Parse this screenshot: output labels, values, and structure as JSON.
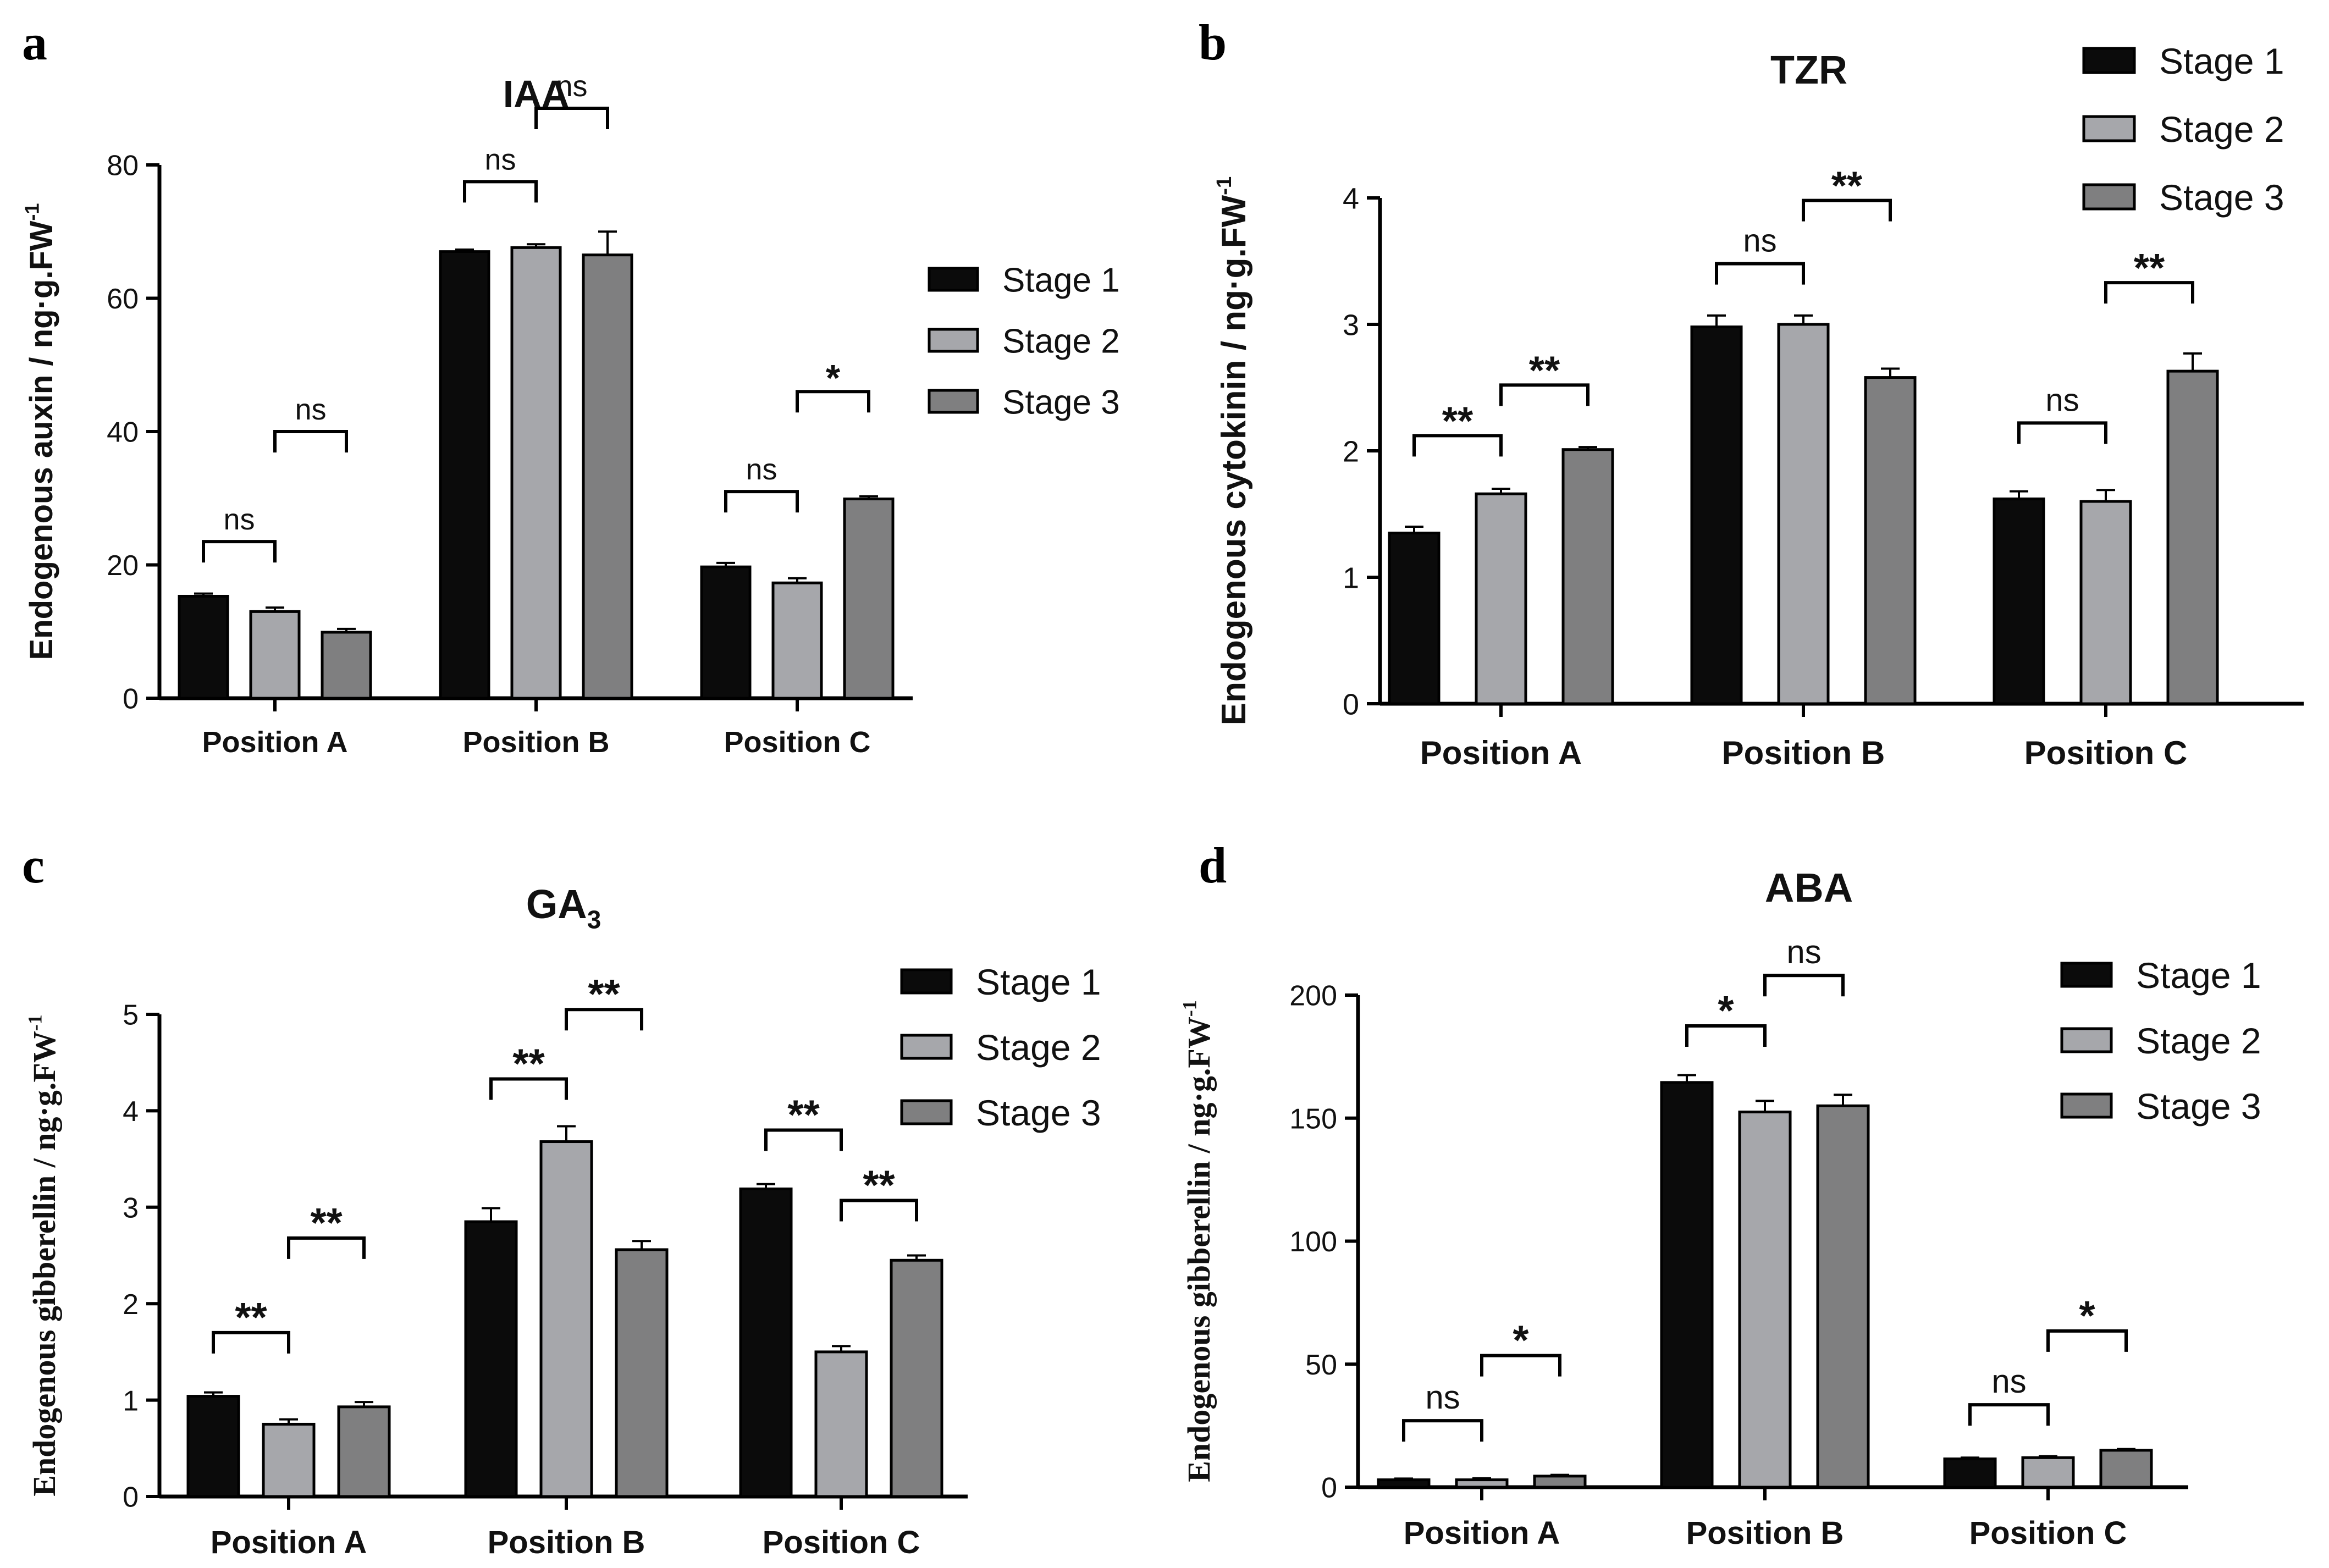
{
  "colors": {
    "stage1": "#0b0b0b",
    "stage2": "#a6a7ab",
    "stage3": "#7f7f80",
    "axis": "#000000"
  },
  "chart_data": [
    {
      "panel_letter": "a",
      "type": "bar",
      "title": "IAA",
      "ylabel": "Endogenous auxin / ng·g.FW",
      "ylabel_sup": "-1",
      "categories": [
        "Position A",
        "Position B",
        "Position C"
      ],
      "ylim": [
        0,
        80
      ],
      "yticks": [
        0,
        20,
        40,
        60,
        80
      ],
      "legend": [
        "Stage 1",
        "Stage 2",
        "Stage 3"
      ],
      "series": [
        {
          "name": "Stage 1",
          "values": [
            15.3,
            67.0,
            19.7
          ],
          "errors": [
            0.4,
            0.3,
            0.6
          ]
        },
        {
          "name": "Stage 2",
          "values": [
            13.0,
            67.6,
            17.3
          ],
          "errors": [
            0.6,
            0.5,
            0.7
          ]
        },
        {
          "name": "Stage 3",
          "values": [
            9.9,
            66.5,
            29.9
          ],
          "errors": [
            0.5,
            3.5,
            0.4
          ]
        }
      ],
      "annotations": [
        {
          "group": 0,
          "from": 0,
          "to": 1,
          "label": "ns",
          "level": 23.5
        },
        {
          "group": 0,
          "from": 1,
          "to": 2,
          "label": "ns",
          "level": 40.0
        },
        {
          "group": 1,
          "from": 0,
          "to": 1,
          "label": "ns",
          "level": 77.5
        },
        {
          "group": 1,
          "from": 1,
          "to": 2,
          "label": "ns",
          "level": 88.5
        },
        {
          "group": 2,
          "from": 0,
          "to": 1,
          "label": "ns",
          "level": 31.0
        },
        {
          "group": 2,
          "from": 1,
          "to": 2,
          "label": "*",
          "level": 46.0
        }
      ]
    },
    {
      "panel_letter": "b",
      "type": "bar",
      "title": "TZR",
      "ylabel": "Endogenous cytokinin / ng·g.FW",
      "ylabel_sup": "-1",
      "categories": [
        "Position A",
        "Position B",
        "Position C"
      ],
      "ylim": [
        0,
        4
      ],
      "yticks": [
        0,
        1,
        2,
        3,
        4
      ],
      "legend": [
        "Stage 1",
        "Stage 2",
        "Stage 3"
      ],
      "series": [
        {
          "name": "Stage 1",
          "values": [
            1.35,
            2.98,
            1.62
          ],
          "errors": [
            0.05,
            0.09,
            0.06
          ]
        },
        {
          "name": "Stage 2",
          "values": [
            1.66,
            3.0,
            1.6
          ],
          "errors": [
            0.04,
            0.07,
            0.09
          ]
        },
        {
          "name": "Stage 3",
          "values": [
            2.01,
            2.58,
            2.63
          ],
          "errors": [
            0.02,
            0.07,
            0.14
          ]
        }
      ],
      "annotations": [
        {
          "group": 0,
          "from": 0,
          "to": 1,
          "label": "**",
          "level": 2.12
        },
        {
          "group": 0,
          "from": 1,
          "to": 2,
          "label": "**",
          "level": 2.52
        },
        {
          "group": 1,
          "from": 0,
          "to": 1,
          "label": "ns",
          "level": 3.48
        },
        {
          "group": 1,
          "from": 1,
          "to": 2,
          "label": "**",
          "level": 3.98
        },
        {
          "group": 2,
          "from": 0,
          "to": 1,
          "label": "ns",
          "level": 2.22
        },
        {
          "group": 2,
          "from": 1,
          "to": 2,
          "label": "**",
          "level": 3.33
        }
      ]
    },
    {
      "panel_letter": "c",
      "type": "bar",
      "title": "GA",
      "title_sub": "3",
      "ylabel": "Endogenous gibberellin / ng·g.FW",
      "ylabel_sup": "-1",
      "categories": [
        "Position A",
        "Position B",
        "Position C"
      ],
      "ylim": [
        0,
        5
      ],
      "yticks": [
        0,
        1,
        2,
        3,
        4,
        5
      ],
      "legend": [
        "Stage 1",
        "Stage 2",
        "Stage 3"
      ],
      "series": [
        {
          "name": "Stage 1",
          "values": [
            1.04,
            2.85,
            3.19
          ],
          "errors": [
            0.04,
            0.14,
            0.05
          ]
        },
        {
          "name": "Stage 2",
          "values": [
            0.75,
            3.68,
            1.5
          ],
          "errors": [
            0.05,
            0.16,
            0.06
          ]
        },
        {
          "name": "Stage 3",
          "values": [
            0.93,
            2.56,
            2.45
          ],
          "errors": [
            0.05,
            0.09,
            0.05
          ]
        }
      ],
      "annotations": [
        {
          "group": 0,
          "from": 0,
          "to": 1,
          "label": "**",
          "level": 1.7
        },
        {
          "group": 0,
          "from": 1,
          "to": 2,
          "label": "**",
          "level": 2.68
        },
        {
          "group": 1,
          "from": 0,
          "to": 1,
          "label": "**",
          "level": 4.33
        },
        {
          "group": 1,
          "from": 1,
          "to": 2,
          "label": "**",
          "level": 5.05
        },
        {
          "group": 2,
          "from": 0,
          "to": 1,
          "label": "**",
          "level": 3.8
        },
        {
          "group": 2,
          "from": 1,
          "to": 2,
          "label": "**",
          "level": 3.07
        }
      ]
    },
    {
      "panel_letter": "d",
      "type": "bar",
      "title": "ABA",
      "ylabel": "Endogenous gibberellin / ng·g.FW",
      "ylabel_sup": "-1",
      "categories": [
        "Position A",
        "Position B",
        "Position C"
      ],
      "ylim": [
        0,
        200
      ],
      "yticks": [
        0,
        50,
        100,
        150,
        200
      ],
      "legend": [
        "Stage 1",
        "Stage 2",
        "Stage 3"
      ],
      "series": [
        {
          "name": "Stage 1",
          "values": [
            3.0,
            164.5,
            11.5
          ],
          "errors": [
            0.5,
            3.0,
            0.5
          ]
        },
        {
          "name": "Stage 2",
          "values": [
            3.0,
            152.5,
            12.0
          ],
          "errors": [
            0.6,
            4.5,
            0.6
          ]
        },
        {
          "name": "Stage 3",
          "values": [
            4.5,
            155.0,
            15.0
          ],
          "errors": [
            0.5,
            4.5,
            0.5
          ]
        }
      ],
      "annotations": [
        {
          "group": 0,
          "from": 0,
          "to": 1,
          "label": "ns",
          "level": 27.0
        },
        {
          "group": 0,
          "from": 1,
          "to": 2,
          "label": "*",
          "level": 53.5
        },
        {
          "group": 1,
          "from": 0,
          "to": 1,
          "label": "*",
          "level": 187.5
        },
        {
          "group": 1,
          "from": 1,
          "to": 2,
          "label": "ns",
          "level": 208.0
        },
        {
          "group": 2,
          "from": 0,
          "to": 1,
          "label": "ns",
          "level": 33.5
        },
        {
          "group": 2,
          "from": 1,
          "to": 2,
          "label": "*",
          "level": 63.5
        }
      ]
    }
  ]
}
